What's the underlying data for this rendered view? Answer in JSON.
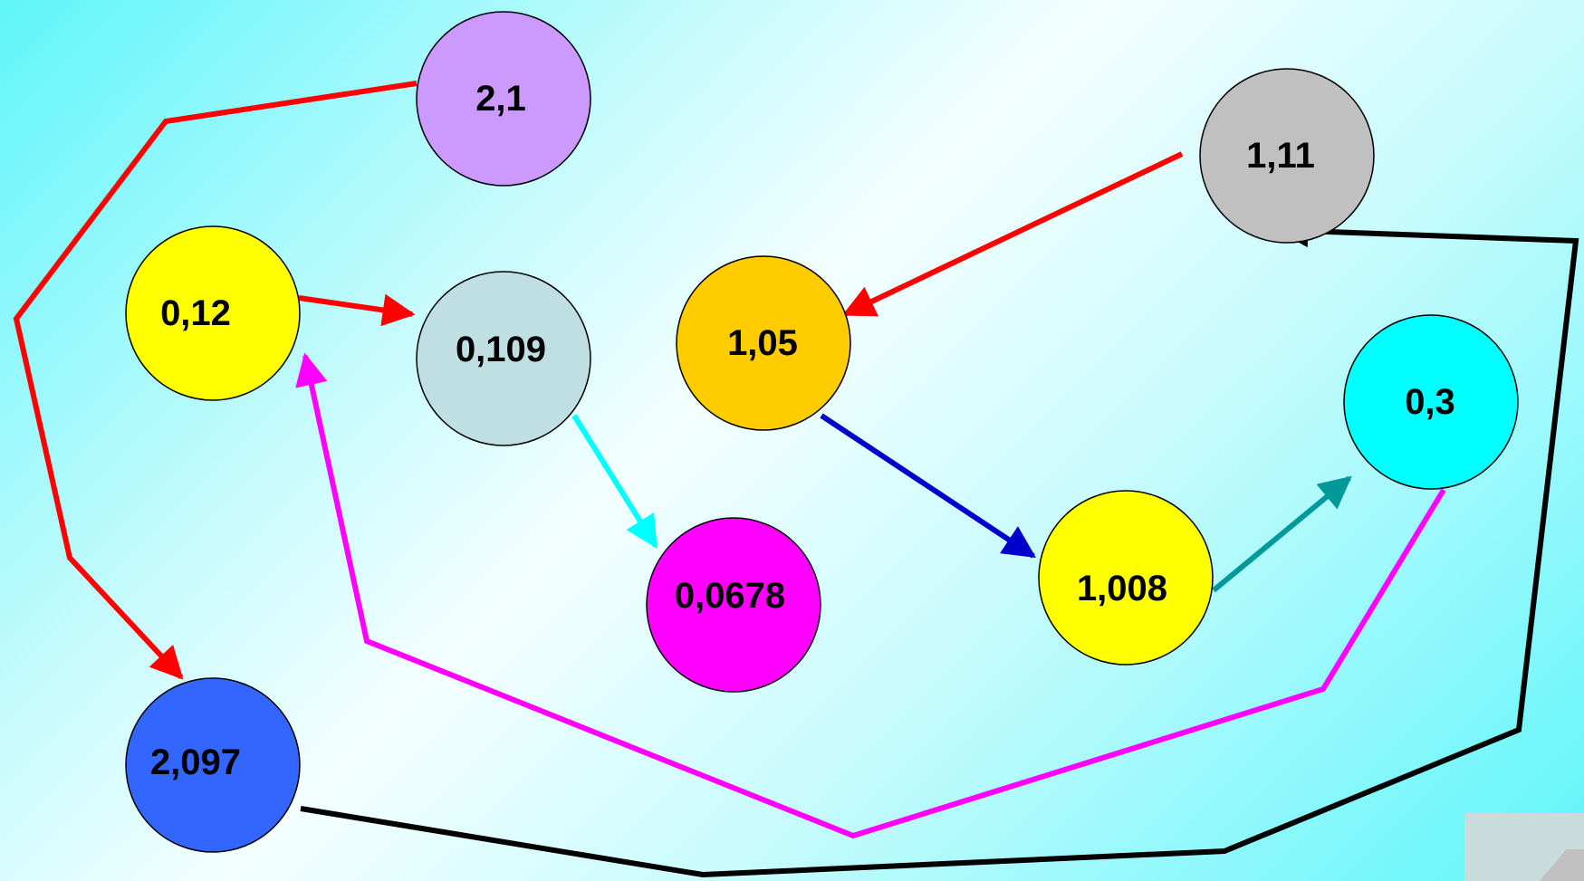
{
  "nodes": [
    {
      "id": "n-2-1",
      "label": "2,1",
      "color": "#cc99ff"
    },
    {
      "id": "n-1-11",
      "label": "1,11",
      "color": "#c0c0c0"
    },
    {
      "id": "n-0-12",
      "label": "0,12",
      "color": "#ffff00"
    },
    {
      "id": "n-0-109",
      "label": "0,109",
      "color": "#bfdfe3"
    },
    {
      "id": "n-1-05",
      "label": "1,05",
      "color": "#ffcc00"
    },
    {
      "id": "n-0-3",
      "label": "0,3",
      "color": "#00ffff"
    },
    {
      "id": "n-1-008",
      "label": "1,008",
      "color": "#ffff00"
    },
    {
      "id": "n-0-0678",
      "label": "0,0678",
      "color": "#ff00ff"
    },
    {
      "id": "n-2-097",
      "label": "2,097",
      "color": "#3366ff"
    }
  ],
  "edges": [
    {
      "from": "2,1",
      "to": "2,097",
      "color": "#ff0000"
    },
    {
      "from": "0,12",
      "to": "0,109",
      "color": "#ff0000"
    },
    {
      "from": "1,11",
      "to": "1,05",
      "color": "#ff0000"
    },
    {
      "from": "0,109",
      "to": "0,0678",
      "color": "#00ffff"
    },
    {
      "from": "1,05",
      "to": "1,008",
      "color": "#0000cc"
    },
    {
      "from": "1,008",
      "to": "0,3",
      "color": "#009999"
    },
    {
      "from": "0,3",
      "to": "0,12",
      "color": "#ff00ff"
    },
    {
      "from": "2,097",
      "to": "1,11",
      "color": "#000000"
    }
  ]
}
